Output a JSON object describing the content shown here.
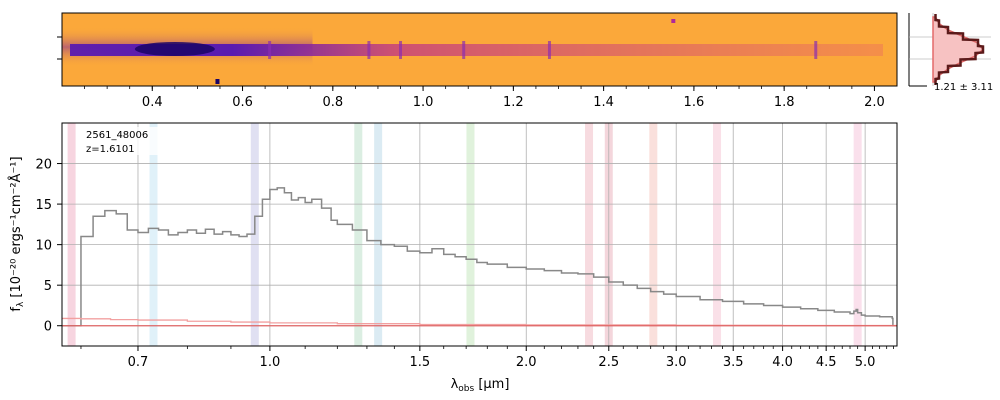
{
  "chart_data": [
    {
      "type": "heatmap",
      "panel": "2d-spectrum",
      "x_ticks": [
        "0.4",
        "0.6",
        "0.8",
        "1.0",
        "1.2",
        "1.4",
        "1.6",
        "1.8",
        "2.0"
      ],
      "x_tick_values": [
        0.4,
        0.6,
        0.8,
        1.0,
        1.2,
        1.4,
        1.6,
        1.8,
        2.0
      ],
      "x_range": [
        0.2,
        2.05
      ],
      "colormap": "plasma",
      "background_color": "#fba83a",
      "trace_color": "#5a1bb0",
      "emission_lines_um": [
        0.66,
        0.88,
        0.95,
        1.09,
        1.28,
        1.87
      ]
    },
    {
      "type": "line",
      "panel": "spatial-profile",
      "annotation": "1.21 ± 3.11",
      "profile": [
        0.05,
        0.12,
        0.3,
        0.6,
        0.9,
        1.0,
        0.85,
        0.55,
        0.3,
        0.12,
        0.05
      ],
      "model_color": "#e36a6a",
      "data_color": "#5c1a1a",
      "fill_color": "#f7c2c2"
    },
    {
      "type": "line",
      "panel": "1d-spectrum",
      "annotations": [
        "2561_48006",
        "z=1.6101"
      ],
      "xlabel_main": "λ",
      "xlabel_sub": "obs",
      "xlabel_unit": "[μm]",
      "ylabel_pre": "f",
      "ylabel_sub": "λ",
      "ylabel_unit": " [10⁻²⁰ ergs⁻¹cm⁻²Å⁻¹]",
      "x_ticks": [
        "0.7",
        "1.0",
        "1.5",
        "2.0",
        "2.5",
        "3.0",
        "3.5",
        "4.0",
        "4.5",
        "5.0"
      ],
      "x_tick_values": [
        0.7,
        1.0,
        1.5,
        2.0,
        2.5,
        3.0,
        3.5,
        4.0,
        4.5,
        5.0
      ],
      "y_ticks": [
        "0",
        "5",
        "10",
        "15",
        "20"
      ],
      "y_tick_values": [
        0,
        5,
        10,
        15,
        20
      ],
      "xlim": [
        0.57,
        5.45
      ],
      "ylim": [
        -2.5,
        25
      ],
      "grid": true,
      "series": [
        {
          "color": "#888888",
          "x": [
            0.57,
            0.6,
            0.62,
            0.64,
            0.66,
            0.68,
            0.7,
            0.72,
            0.74,
            0.76,
            0.78,
            0.8,
            0.82,
            0.84,
            0.86,
            0.88,
            0.9,
            0.92,
            0.94,
            0.96,
            0.98,
            1.0,
            1.02,
            1.04,
            1.06,
            1.08,
            1.1,
            1.12,
            1.15,
            1.18,
            1.2,
            1.25,
            1.3,
            1.35,
            1.4,
            1.45,
            1.5,
            1.55,
            1.6,
            1.65,
            1.7,
            1.75,
            1.8,
            1.9,
            2.0,
            2.1,
            2.2,
            2.3,
            2.4,
            2.5,
            2.6,
            2.7,
            2.8,
            2.9,
            3.0,
            3.2,
            3.4,
            3.6,
            3.8,
            4.0,
            4.2,
            4.4,
            4.6,
            4.8,
            4.85,
            4.88,
            4.9,
            4.95,
            5.0,
            5.2,
            5.38,
            5.39,
            5.45
          ],
          "y": [
            0,
            11,
            13.5,
            14.2,
            13.8,
            11.8,
            11.5,
            12,
            11.8,
            11.2,
            11.5,
            11.8,
            11.4,
            11.9,
            11.3,
            11.6,
            11.2,
            11,
            11.3,
            13.5,
            15.6,
            16.8,
            17,
            16.4,
            15.5,
            15.8,
            15.2,
            15.6,
            14.5,
            13,
            12.5,
            11.8,
            10.5,
            10,
            9.8,
            9.2,
            9,
            9.5,
            8.8,
            8.5,
            8.2,
            7.8,
            7.6,
            7.2,
            7,
            6.8,
            6.5,
            6.4,
            6,
            5.4,
            5,
            4.6,
            4.2,
            3.9,
            3.6,
            3.2,
            3,
            2.7,
            2.5,
            2.3,
            2.1,
            1.9,
            1.7,
            1.5,
            1.8,
            2,
            1.6,
            1.3,
            1.2,
            1.1,
            0.9,
            0,
            0
          ]
        },
        {
          "color": "#f2a0a0",
          "x": [
            0.57,
            0.6,
            0.65,
            0.7,
            0.8,
            0.9,
            1.0,
            1.2,
            1.5,
            2.0,
            3.0,
            4.0,
            5.0,
            5.45
          ],
          "y": [
            0.9,
            0.85,
            0.75,
            0.7,
            0.55,
            0.45,
            0.35,
            0.25,
            0.15,
            0.1,
            0.05,
            0.03,
            0.02,
            0.02
          ]
        },
        {
          "color": "#e06666",
          "x": [
            0.57,
            5.45
          ],
          "y": [
            0,
            0
          ]
        }
      ],
      "shaded_bands_um": [
        {
          "x": 0.585,
          "color": "#f4c7d6"
        },
        {
          "x": 0.73,
          "color": "#d6ecf7"
        },
        {
          "x": 0.96,
          "color": "#d6d6ee"
        },
        {
          "x": 1.27,
          "color": "#cfe8d8"
        },
        {
          "x": 1.34,
          "color": "#cfe4ef"
        },
        {
          "x": 1.72,
          "color": "#d6edd0"
        },
        {
          "x": 2.37,
          "color": "#f4cfd6"
        },
        {
          "x": 2.5,
          "color": "#f0c8d0"
        },
        {
          "x": 2.82,
          "color": "#f8d6d0"
        },
        {
          "x": 3.35,
          "color": "#f8d6e0"
        },
        {
          "x": 4.9,
          "color": "#f8d6e6"
        }
      ]
    }
  ]
}
